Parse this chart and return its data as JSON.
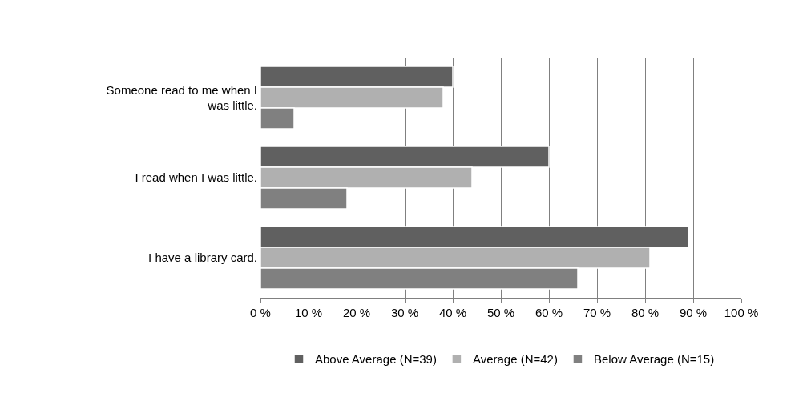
{
  "chart_data": {
    "type": "bar",
    "orientation": "horizontal",
    "categories": [
      "Someone read to me when I was little.",
      "I read when I was little.",
      "I have a library card."
    ],
    "series": [
      {
        "name": "Above Average (N=39)",
        "color": "#606060",
        "values": [
          40,
          60,
          89
        ]
      },
      {
        "name": "Average (N=42)",
        "color": "#b0b0b0",
        "values": [
          38,
          44,
          81
        ]
      },
      {
        "name": "Below Average (N=15)",
        "color": "#808080",
        "values": [
          7,
          18,
          66
        ]
      }
    ],
    "xlim": [
      0,
      100
    ],
    "xticks": [
      {
        "value": 0,
        "label": "0 %"
      },
      {
        "value": 10,
        "label": "10 %"
      },
      {
        "value": 20,
        "label": "20 %"
      },
      {
        "value": 30,
        "label": "30 %"
      },
      {
        "value": 40,
        "label": "40 %"
      },
      {
        "value": 50,
        "label": "50 %"
      },
      {
        "value": 60,
        "label": "60 %"
      },
      {
        "value": 70,
        "label": "70 %"
      },
      {
        "value": 80,
        "label": "80 %"
      },
      {
        "value": 90,
        "label": "90 %"
      },
      {
        "value": 100,
        "label": "100 %"
      }
    ],
    "grid": "x",
    "legend": "bottom"
  }
}
